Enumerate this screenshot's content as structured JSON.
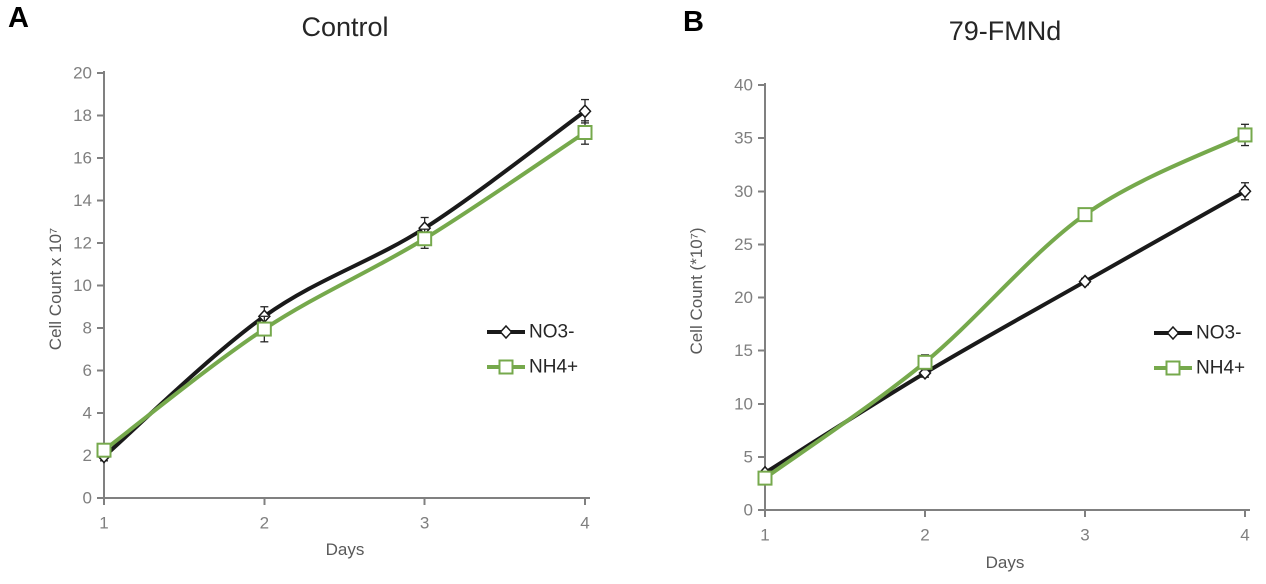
{
  "figure": {
    "background": "#ffffff"
  },
  "colors": {
    "series_no3": "#1a1a1a",
    "series_nh4": "#76a94c",
    "axis_line": "#808080",
    "tick_label": "#7f7f7f",
    "axis_title": "#595959",
    "chart_title": "#262626",
    "legend_text": "#262626",
    "error_bar": "#262626",
    "marker_fill": "#ffffff"
  },
  "chart_data": [
    {
      "type": "line",
      "panel_label": "A",
      "title": "Control",
      "xlabel": "Days",
      "ylabel": "Cell Count x 10⁷",
      "x": [
        1,
        2,
        3,
        4
      ],
      "xlim": [
        1,
        4
      ],
      "ylim": [
        0,
        20
      ],
      "ytick_step": 2,
      "grid": false,
      "legend_position": "right-middle",
      "series": [
        {
          "name": "NO3-",
          "marker": "diamond",
          "color": "#1a1a1a",
          "values": [
            1.95,
            8.55,
            12.7,
            18.2
          ],
          "errors": [
            0.2,
            0.45,
            0.5,
            0.55
          ]
        },
        {
          "name": "NH4+",
          "marker": "square",
          "color": "#76a94c",
          "values": [
            2.25,
            7.95,
            12.2,
            17.2
          ],
          "errors": [
            0.2,
            0.6,
            0.45,
            0.55
          ]
        }
      ]
    },
    {
      "type": "line",
      "panel_label": "B",
      "title": "79-FMNd",
      "xlabel": "Days",
      "ylabel": "Cell Count (*10⁷)",
      "x": [
        1,
        2,
        3,
        4
      ],
      "xlim": [
        1,
        4
      ],
      "ylim": [
        0,
        40
      ],
      "ytick_step": 5,
      "grid": false,
      "legend_position": "right-middle",
      "series": [
        {
          "name": "NO3-",
          "marker": "diamond",
          "color": "#1a1a1a",
          "values": [
            3.5,
            12.9,
            21.5,
            30.0
          ],
          "errors": [
            0.2,
            0.4,
            0.3,
            0.8
          ]
        },
        {
          "name": "NH4+",
          "marker": "square",
          "color": "#76a94c",
          "values": [
            3.0,
            13.9,
            27.8,
            35.3
          ],
          "errors": [
            0.2,
            0.7,
            0.3,
            1.0
          ]
        }
      ]
    }
  ]
}
